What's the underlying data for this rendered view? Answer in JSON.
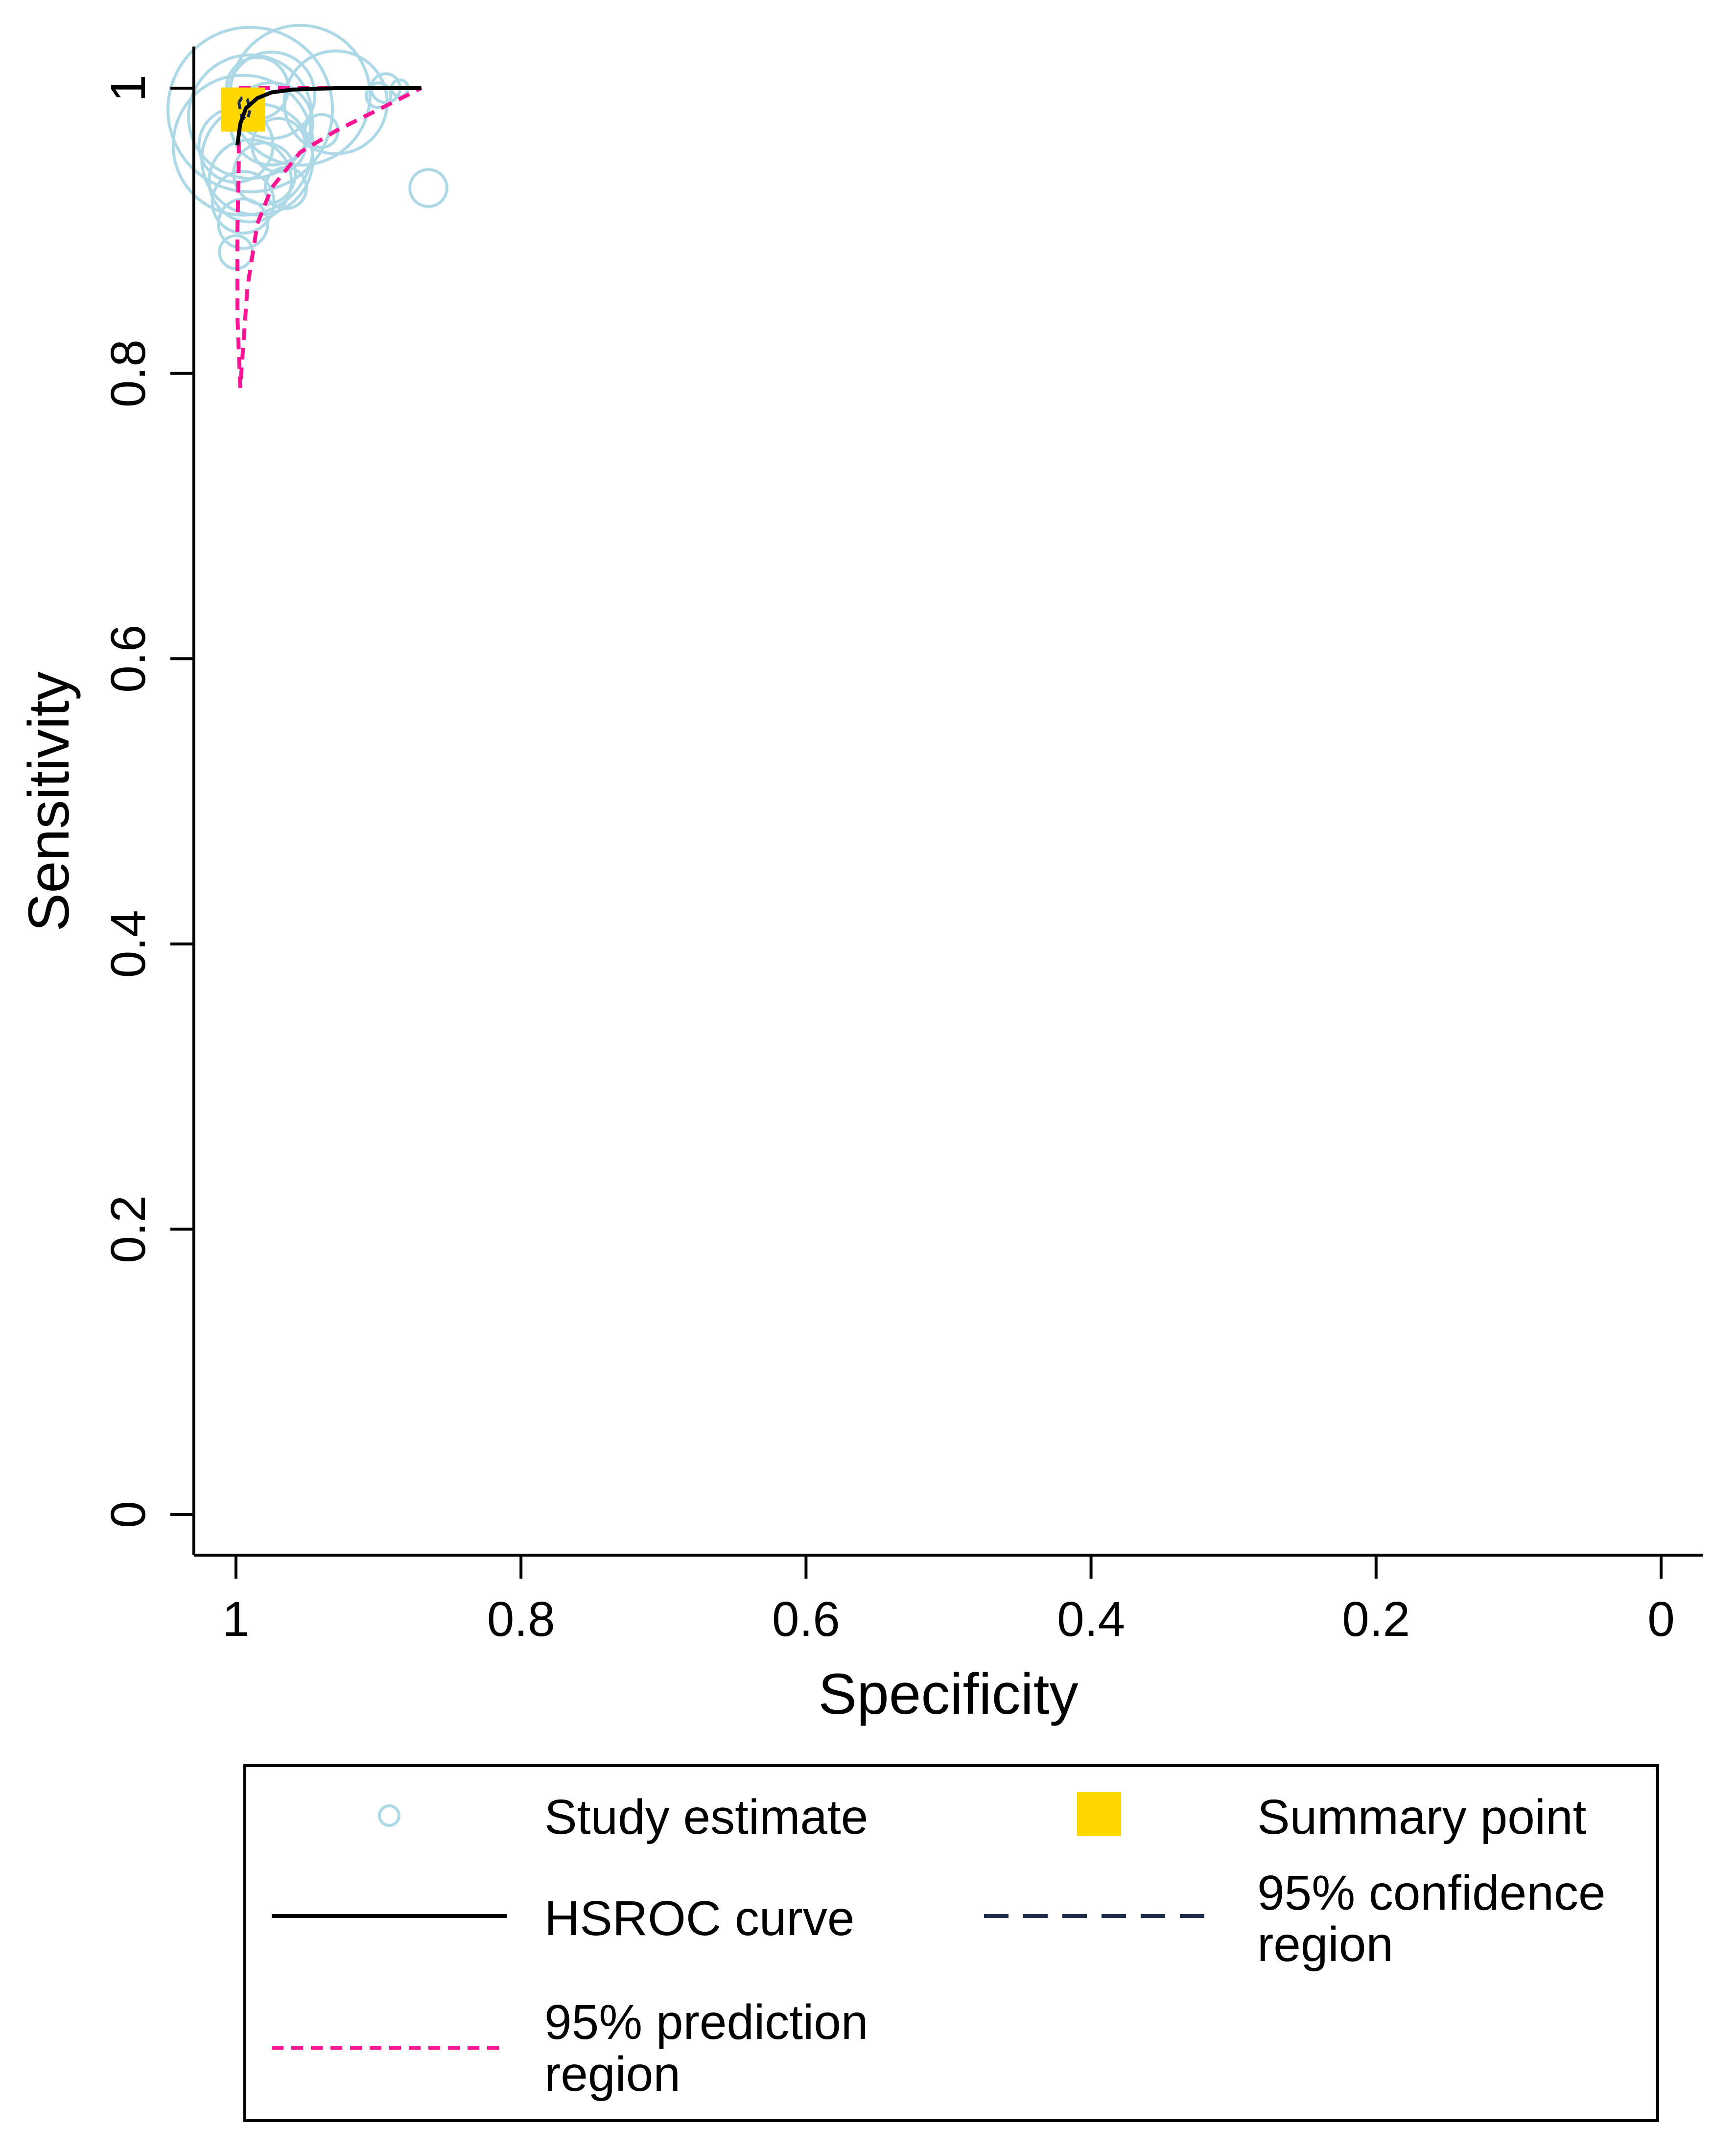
{
  "chart_data": {
    "type": "scatter",
    "title": "",
    "xlabel": "Specificity",
    "ylabel": "Sensitivity",
    "x_reversed": true,
    "xlim": [
      1,
      0
    ],
    "ylim": [
      0,
      1
    ],
    "xticks": [
      {
        "value": 1,
        "label": "1"
      },
      {
        "value": 0.8,
        "label": "0.8"
      },
      {
        "value": 0.6,
        "label": "0.6"
      },
      {
        "value": 0.4,
        "label": "0.4"
      },
      {
        "value": 0.2,
        "label": "0.2"
      },
      {
        "value": 0,
        "label": "0"
      }
    ],
    "yticks": [
      {
        "value": 1,
        "label": "1"
      },
      {
        "value": 0.8,
        "label": "0.8"
      },
      {
        "value": 0.6,
        "label": "0.6"
      },
      {
        "value": 0.4,
        "label": "0.4"
      },
      {
        "value": 0.2,
        "label": "0.2"
      },
      {
        "value": 0,
        "label": "0"
      }
    ],
    "grid": false,
    "colors": {
      "study": "#add8e6",
      "summary": "#ffd700",
      "hsroc": "#000000",
      "confidence": "#1f2d4d",
      "prediction": "#ff1493"
    },
    "study_estimates": [
      {
        "specificity": 0.99,
        "sensitivity": 0.985,
        "weight": 40
      },
      {
        "specificity": 0.99,
        "sensitivity": 0.98,
        "weight": 30
      },
      {
        "specificity": 0.995,
        "sensitivity": 0.96,
        "weight": 34
      },
      {
        "specificity": 0.985,
        "sensitivity": 0.95,
        "weight": 27
      },
      {
        "specificity": 0.99,
        "sensitivity": 0.935,
        "weight": 20
      },
      {
        "specificity": 0.995,
        "sensitivity": 0.92,
        "weight": 15
      },
      {
        "specificity": 0.995,
        "sensitivity": 0.905,
        "weight": 12
      },
      {
        "specificity": 1.0,
        "sensitivity": 0.885,
        "weight": 8
      },
      {
        "specificity": 0.955,
        "sensitivity": 0.995,
        "weight": 34
      },
      {
        "specificity": 0.93,
        "sensitivity": 0.99,
        "weight": 25
      },
      {
        "specificity": 0.97,
        "sensitivity": 0.96,
        "weight": 13
      },
      {
        "specificity": 0.94,
        "sensitivity": 0.97,
        "weight": 8
      },
      {
        "specificity": 0.895,
        "sensitivity": 1.0,
        "weight": 7
      },
      {
        "specificity": 0.885,
        "sensitivity": 1.0,
        "weight": 4
      },
      {
        "specificity": 0.9,
        "sensitivity": 0.995,
        "weight": 6
      },
      {
        "specificity": 0.865,
        "sensitivity": 0.93,
        "weight": 9
      },
      {
        "specificity": 0.975,
        "sensitivity": 0.995,
        "weight": 21
      },
      {
        "specificity": 0.98,
        "sensitivity": 0.94,
        "weight": 15
      },
      {
        "specificity": 0.965,
        "sensitivity": 0.93,
        "weight": 10
      },
      {
        "specificity": 0.985,
        "sensitivity": 1.0,
        "weight": 15
      },
      {
        "specificity": 1.0,
        "sensitivity": 0.96,
        "weight": 18
      },
      {
        "specificity": 0.975,
        "sensitivity": 0.975,
        "weight": 20
      }
    ],
    "summary_point": {
      "specificity": 0.995,
      "sensitivity": 0.985
    },
    "hsroc_curve": [
      {
        "specificity": 0.999,
        "sensitivity": 0.96
      },
      {
        "specificity": 0.997,
        "sensitivity": 0.975
      },
      {
        "specificity": 0.993,
        "sensitivity": 0.986
      },
      {
        "specificity": 0.985,
        "sensitivity": 0.993
      },
      {
        "specificity": 0.975,
        "sensitivity": 0.997
      },
      {
        "specificity": 0.96,
        "sensitivity": 0.999
      },
      {
        "specificity": 0.93,
        "sensitivity": 1.0
      },
      {
        "specificity": 0.87,
        "sensitivity": 1.0
      }
    ],
    "confidence_region": [
      {
        "specificity": 0.998,
        "sensitivity": 0.99
      },
      {
        "specificity": 0.996,
        "sensitivity": 0.98
      },
      {
        "specificity": 0.992,
        "sensitivity": 0.978
      },
      {
        "specificity": 0.99,
        "sensitivity": 0.985
      },
      {
        "specificity": 0.992,
        "sensitivity": 0.992
      },
      {
        "specificity": 0.996,
        "sensitivity": 0.993
      },
      {
        "specificity": 0.998,
        "sensitivity": 0.99
      }
    ],
    "prediction_region": [
      {
        "specificity": 0.998,
        "sensitivity": 1.0
      },
      {
        "specificity": 0.95,
        "sensitivity": 1.0
      },
      {
        "specificity": 0.87,
        "sensitivity": 1.0
      },
      {
        "specificity": 0.9,
        "sensitivity": 0.985
      },
      {
        "specificity": 0.93,
        "sensitivity": 0.97
      },
      {
        "specificity": 0.955,
        "sensitivity": 0.955
      },
      {
        "specificity": 0.975,
        "sensitivity": 0.93
      },
      {
        "specificity": 0.985,
        "sensitivity": 0.905
      },
      {
        "specificity": 0.992,
        "sensitivity": 0.86
      },
      {
        "specificity": 0.997,
        "sensitivity": 0.79
      },
      {
        "specificity": 0.999,
        "sensitivity": 0.84
      },
      {
        "specificity": 0.999,
        "sensitivity": 0.9
      },
      {
        "specificity": 0.998,
        "sensitivity": 0.95
      },
      {
        "specificity": 0.998,
        "sensitivity": 1.0
      }
    ],
    "legend": {
      "position": "bottom",
      "items": [
        {
          "key": "study",
          "label": "Study estimate"
        },
        {
          "key": "summary",
          "label": "Summary point"
        },
        {
          "key": "hsroc",
          "label": "HSROC curve"
        },
        {
          "key": "confidence",
          "label_lines": [
            "95% confidence",
            "region"
          ]
        },
        {
          "key": "prediction",
          "label_lines": [
            "95% prediction",
            "region"
          ]
        }
      ]
    }
  }
}
